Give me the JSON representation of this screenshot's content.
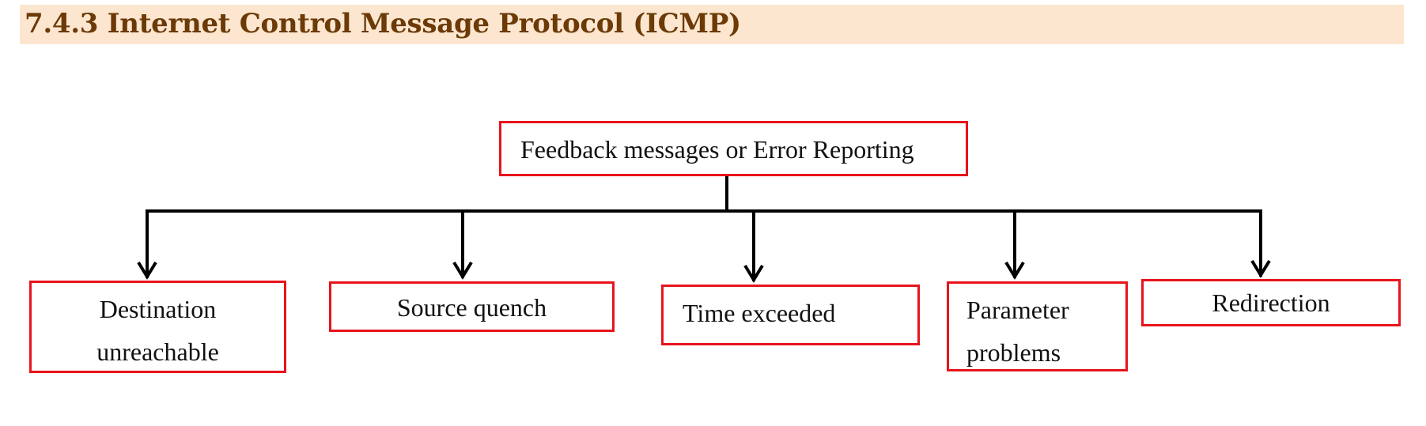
{
  "header": {
    "title": "7.4.3 Internet Control Message Protocol (ICMP)"
  },
  "diagram": {
    "root": {
      "label": "Feedback messages or Error Reporting"
    },
    "children": [
      {
        "lines": [
          "Destination",
          "unreachable"
        ]
      },
      {
        "lines": [
          "Source quench"
        ]
      },
      {
        "lines": [
          "Time exceeded"
        ]
      },
      {
        "lines": [
          "Parameter",
          "problems"
        ]
      },
      {
        "lines": [
          "Redirection"
        ]
      }
    ]
  },
  "colors": {
    "title_background": "#fde6cf",
    "title_text": "#6b3a07",
    "box_border": "#e8141b",
    "connector": "#000000"
  }
}
